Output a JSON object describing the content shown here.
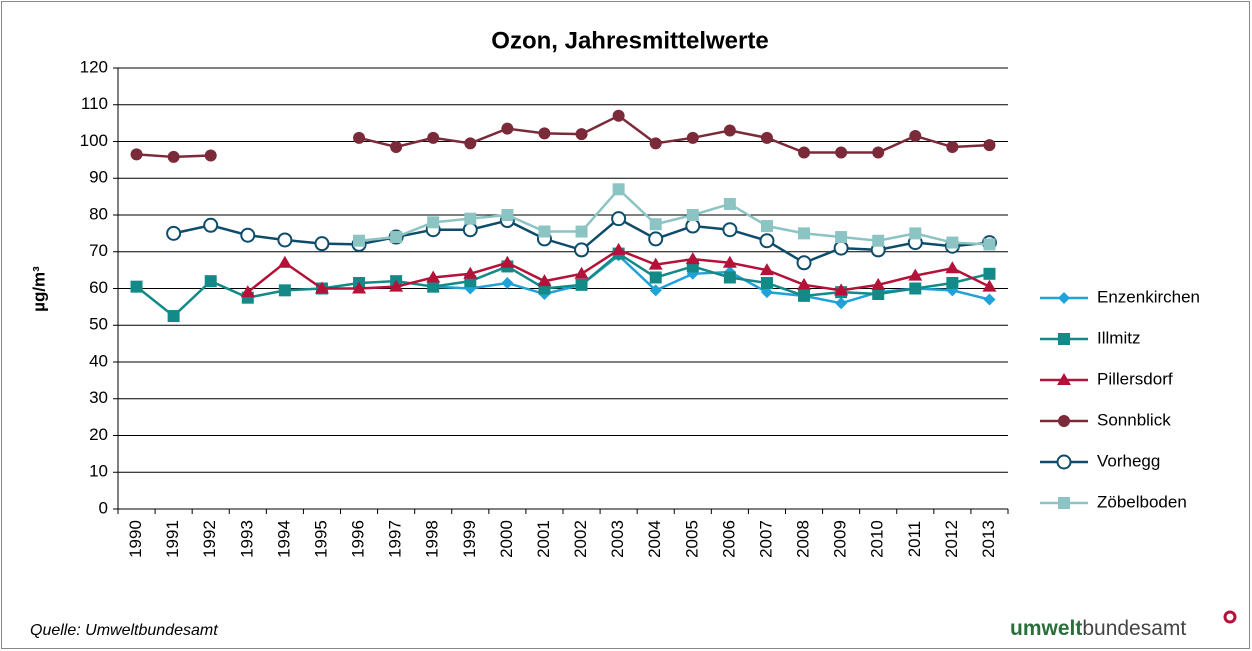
{
  "chart_data": {
    "type": "line",
    "title": "Ozon, Jahresmittelwerte",
    "y_label": "µg/m³",
    "categories": [
      "1990",
      "1991",
      "1992",
      "1993",
      "1994",
      "1995",
      "1996",
      "1997",
      "1998",
      "1999",
      "2000",
      "2001",
      "2002",
      "2003",
      "2004",
      "2005",
      "2006",
      "2007",
      "2008",
      "2009",
      "2010",
      "2011",
      "2012",
      "2013"
    ],
    "ylim": [
      0,
      120
    ],
    "yticks": [
      0,
      10,
      20,
      30,
      40,
      50,
      60,
      70,
      80,
      90,
      100,
      110,
      120
    ],
    "grid": true,
    "legend": "right",
    "series": [
      {
        "name": "Enzenkirchen",
        "color": "#1fa2d8",
        "marker": "diamond",
        "values": [
          null,
          null,
          null,
          null,
          null,
          null,
          null,
          null,
          60.5,
          60,
          61.5,
          58.5,
          61,
          69,
          59.5,
          64,
          64.5,
          59,
          58,
          56,
          59,
          60,
          59.5,
          57
        ]
      },
      {
        "name": "Illmitz",
        "color": "#138a88",
        "marker": "square",
        "values": [
          60.5,
          52.5,
          62,
          57.5,
          59.5,
          60,
          61.5,
          62,
          60.5,
          62,
          66,
          60,
          61,
          69.5,
          63,
          66,
          63,
          61.5,
          58,
          59,
          58.5,
          60,
          61.5,
          64
        ]
      },
      {
        "name": "Pillersdorf",
        "color": "#b5123a",
        "marker": "triangle",
        "values": [
          null,
          null,
          null,
          59,
          67,
          60,
          60,
          60.5,
          63,
          64,
          67,
          62,
          64,
          70.5,
          66.5,
          68,
          67,
          65,
          61,
          59.5,
          61,
          63.5,
          65.5,
          60.5
        ]
      },
      {
        "name": "Sonnblick",
        "color": "#7a2a38",
        "marker": "circle",
        "values": [
          96.5,
          95.8,
          96.2,
          null,
          null,
          null,
          101,
          98.5,
          101,
          99.5,
          103.5,
          102.2,
          102,
          107,
          99.5,
          101,
          103,
          101,
          97,
          97,
          97,
          101.5,
          98.5,
          99
        ]
      },
      {
        "name": "Vorhegg",
        "color": "#0e4c6b",
        "marker": "open-circle",
        "values": [
          null,
          75,
          77.2,
          74.5,
          73.2,
          72.2,
          72,
          74,
          76,
          76,
          78.5,
          73.5,
          70.5,
          79,
          73.5,
          77,
          76,
          73,
          67,
          71,
          70.5,
          72.5,
          71.5,
          72.5
        ]
      },
      {
        "name": "Zöbelboden",
        "color": "#8cc4c4",
        "marker": "square",
        "values": [
          null,
          null,
          null,
          null,
          null,
          null,
          73,
          74,
          78,
          79,
          80,
          75.5,
          75.5,
          87,
          77.5,
          80,
          83,
          77,
          75,
          74,
          73,
          75,
          72.5,
          72
        ]
      }
    ],
    "source": "Quelle: Umweltbundesamt",
    "logo": {
      "bold": "umwelt",
      "rest": "bundesamt"
    }
  }
}
